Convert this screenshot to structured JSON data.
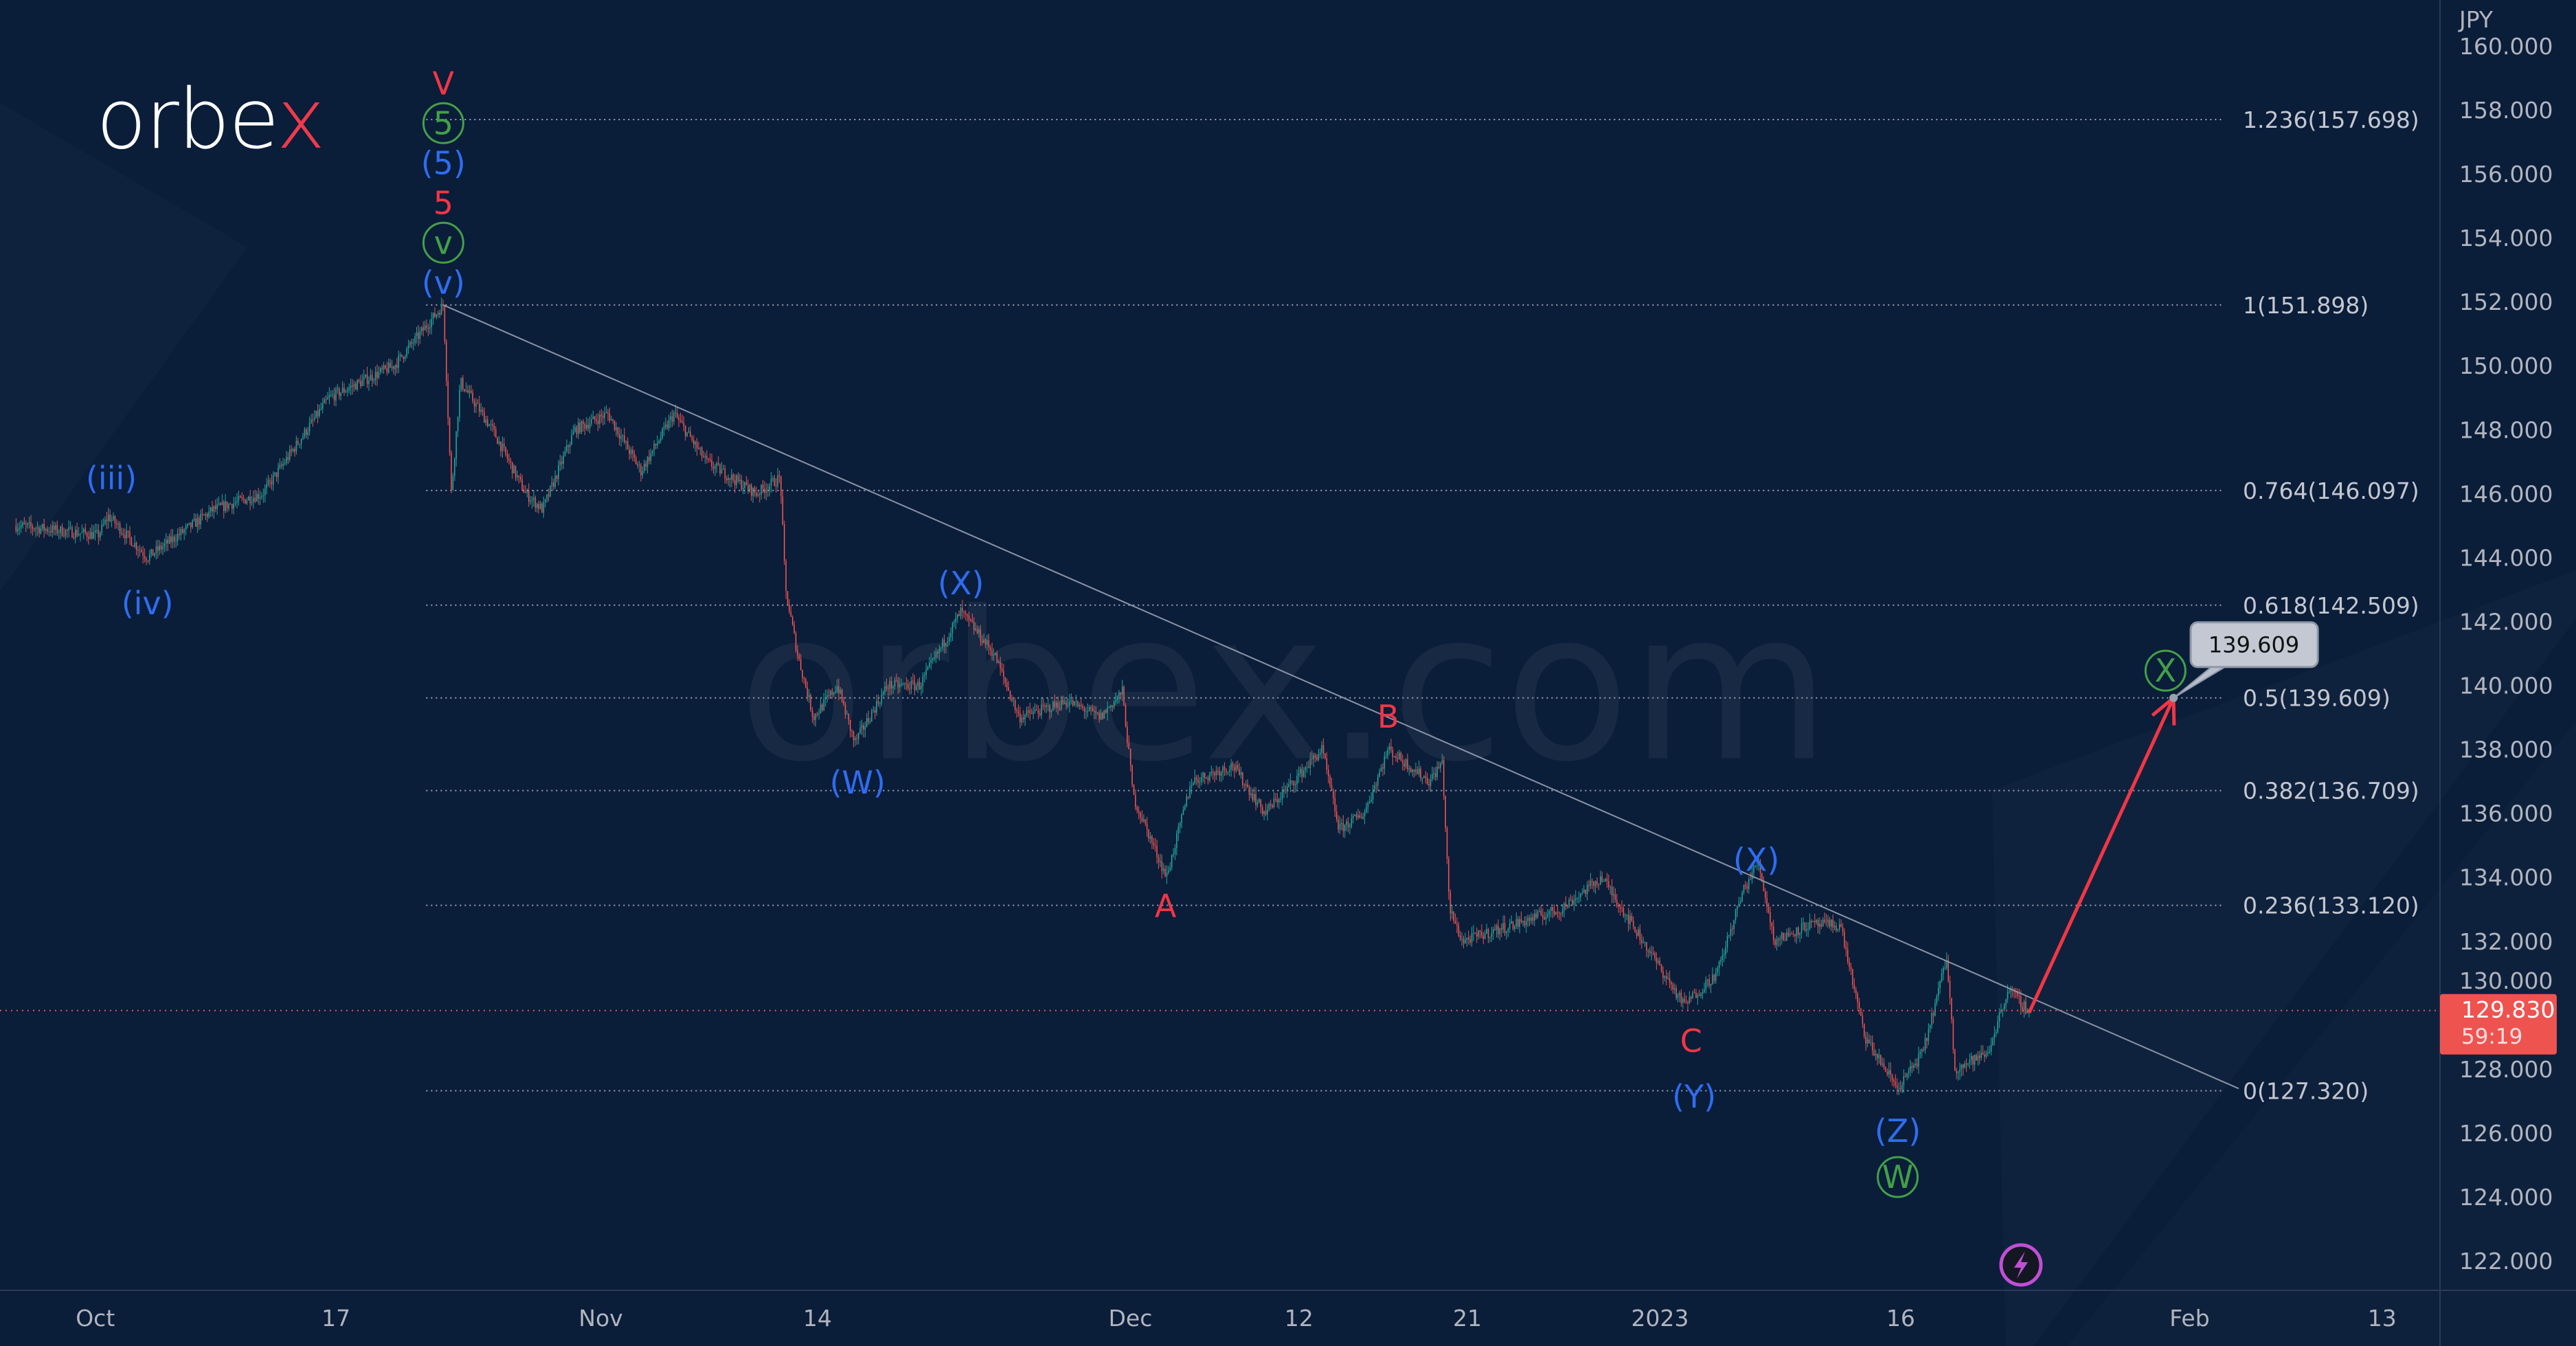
{
  "brand": {
    "logo_text": "orbex",
    "watermark": "orbex.com"
  },
  "chart_data": {
    "type": "candlestick",
    "currency_label": "JPY",
    "ylim": [
      121,
      160.5
    ],
    "y_ticks": [
      "160.000",
      "158.000",
      "156.000",
      "154.000",
      "152.000",
      "150.000",
      "148.000",
      "146.000",
      "144.000",
      "142.000",
      "140.000",
      "138.000",
      "136.000",
      "134.000",
      "132.000",
      "130.000",
      "128.000",
      "126.000",
      "124.000",
      "122.000"
    ],
    "x_ticks": [
      {
        "label": "Oct",
        "date": "2022-10-03"
      },
      {
        "label": "17",
        "date": "2022-10-17"
      },
      {
        "label": "Nov",
        "date": "2022-11-01"
      },
      {
        "label": "14",
        "date": "2022-11-14"
      },
      {
        "label": "Dec",
        "date": "2022-12-01"
      },
      {
        "label": "12",
        "date": "2022-12-12"
      },
      {
        "label": "21",
        "date": "2022-12-21"
      },
      {
        "label": "2023",
        "date": "2023-01-02"
      },
      {
        "label": "16",
        "date": "2023-01-16"
      },
      {
        "label": "Feb",
        "date": "2023-02-01"
      },
      {
        "label": "13",
        "date": "2023-02-13"
      }
    ],
    "price_path": [
      [
        "2022-09-27T17",
        145.0
      ],
      [
        "2022-10-03T03",
        144.7
      ],
      [
        "2022-10-03T13",
        145.3
      ],
      [
        "2022-10-05T04",
        144.0
      ],
      [
        "2022-10-07T22",
        145.5
      ],
      [
        "2022-10-11T23",
        146.0
      ],
      [
        "2022-10-14T17",
        149.0
      ],
      [
        "2022-10-19T10",
        150.0
      ],
      [
        "2022-10-21T11",
        151.9
      ],
      [
        "2022-10-21T19",
        146.0
      ],
      [
        "2022-10-24T04",
        149.5
      ],
      [
        "2022-10-25T12",
        148.0
      ],
      [
        "2022-10-26T21",
        146.0
      ],
      [
        "2022-10-27T14",
        145.5
      ],
      [
        "2022-10-28T22",
        148.0
      ],
      [
        "2022-11-01T07",
        148.5
      ],
      [
        "2022-11-02T16",
        146.7
      ],
      [
        "2022-11-04T01",
        148.5
      ],
      [
        "2022-11-07T09",
        147.0
      ],
      [
        "2022-11-09T11",
        146.0
      ],
      [
        "2022-11-10T11",
        146.5
      ],
      [
        "2022-11-10T16",
        143.0
      ],
      [
        "2022-11-11T04",
        141.0
      ],
      [
        "2022-11-11T20",
        139.0
      ],
      [
        "2022-11-14T20",
        140.0
      ],
      [
        "2022-11-15T13",
        138.2
      ],
      [
        "2022-11-16T22",
        140.0
      ],
      [
        "2022-11-18T06",
        140.0
      ],
      [
        "2022-11-21T23",
        142.3
      ],
      [
        "2022-11-23T08",
        141.0
      ],
      [
        "2022-11-24T09",
        139.0
      ],
      [
        "2022-11-28T10",
        139.5
      ],
      [
        "2022-11-29T18",
        139.0
      ],
      [
        "2022-11-30T16",
        139.8
      ],
      [
        "2022-12-01T03",
        136.5
      ],
      [
        "2022-12-02T12",
        134.0
      ],
      [
        "2022-12-05T13",
        137.0
      ],
      [
        "2022-12-07T06",
        137.5
      ],
      [
        "2022-12-08T14",
        136.0
      ],
      [
        "2022-12-12T23",
        138.0
      ],
      [
        "2022-12-13T16",
        135.5
      ],
      [
        "2022-12-14T17",
        136.0
      ],
      [
        "2022-12-15T17",
        138.0
      ],
      [
        "2022-12-19T10",
        137.0
      ],
      [
        "2022-12-19T23",
        137.6
      ],
      [
        "2022-12-20T06",
        133.0
      ],
      [
        "2022-12-20T19",
        132.0
      ],
      [
        "2022-12-22T20",
        132.5
      ],
      [
        "2022-12-26T21",
        133.0
      ],
      [
        "2022-12-28T14",
        134.0
      ],
      [
        "2022-12-30T07",
        132.0
      ],
      [
        "2023-01-03T00",
        130.0
      ],
      [
        "2023-01-04T09",
        131.0
      ],
      [
        "2023-01-05T10",
        133.5
      ],
      [
        "2023-01-06T02",
        134.5
      ],
      [
        "2023-01-06T18",
        132.0
      ],
      [
        "2023-01-10T03",
        132.5
      ],
      [
        "2023-01-11T12",
        132.5
      ],
      [
        "2023-01-12T12",
        129.0
      ],
      [
        "2023-01-13T21",
        127.4
      ],
      [
        "2023-01-16T22",
        128.5
      ],
      [
        "2023-01-17T22",
        131.5
      ],
      [
        "2023-01-18T06",
        128.0
      ],
      [
        "2023-01-19T15",
        128.5
      ],
      [
        "2023-01-20T11",
        130.5
      ],
      [
        "2023-01-23T08",
        129.8
      ]
    ],
    "current_price": {
      "value": "129.830",
      "countdown": "59:19",
      "price": 129.83,
      "color": "#ef5350"
    },
    "fib_levels": [
      {
        "label": "1.236(157.698)",
        "price": 157.698
      },
      {
        "label": "1(151.898)",
        "price": 151.898
      },
      {
        "label": "0.764(146.097)",
        "price": 146.097
      },
      {
        "label": "0.618(142.509)",
        "price": 142.509
      },
      {
        "label": "0.5(139.609)",
        "price": 139.609
      },
      {
        "label": "0.382(136.709)",
        "price": 136.709
      },
      {
        "label": "0.236(133.120)",
        "price": 133.12
      },
      {
        "label": "0(127.320)",
        "price": 127.32
      }
    ],
    "fib_range": {
      "start": "2022-10-21T11",
      "end": "2023-02-03T00"
    },
    "trendline": {
      "start": [
        "2022-10-21T11",
        151.898
      ],
      "end": [
        "2023-02-03T01",
        127.39
      ],
      "color": "#8a93a6"
    },
    "forecast_arrow": {
      "start": [
        "2023-01-23T08",
        129.76
      ],
      "end": [
        "2023-01-31T08",
        139.609
      ],
      "color": "#f23645"
    },
    "target_callout": {
      "label": "139.609",
      "at": [
        "2023-01-31T08",
        139.609
      ]
    },
    "wave_labels": [
      {
        "text": "(iii)",
        "color": "#2f6cf0",
        "circled": false,
        "at": [
          "2022-10-03T16",
          146.48
        ]
      },
      {
        "text": "(iv)",
        "color": "#2f6cf0",
        "circled": false,
        "at": [
          "2022-10-05T04",
          142.57
        ]
      },
      {
        "text": "V",
        "color": "#f23645",
        "circled": false,
        "at": [
          "2022-10-21T11",
          157.33
        ]
      },
      {
        "text": "5",
        "color": "#43a047",
        "circled": true,
        "at": [
          "2022-10-21T11",
          156.05
        ]
      },
      {
        "text": "(5)",
        "color": "#2f6cf0",
        "circled": false,
        "at": [
          "2022-10-21T11",
          154.91
        ]
      },
      {
        "text": "5",
        "color": "#f23645",
        "circled": false,
        "at": [
          "2022-10-21T11",
          154.09
        ]
      },
      {
        "text": "v",
        "color": "#43a047",
        "circled": true,
        "at": [
          "2022-10-21T11",
          153.32
        ]
      },
      {
        "text": "(v)",
        "color": "#2f6cf0",
        "circled": false,
        "at": [
          "2022-10-21T11",
          152.6
        ]
      },
      {
        "text": "(W)",
        "color": "#2f6cf0",
        "circled": false,
        "at": [
          "2022-11-15T16",
          136.96
        ]
      },
      {
        "text": "(X)",
        "color": "#2f6cf0",
        "circled": false,
        "at": [
          "2022-11-21T23",
          143.19
        ]
      },
      {
        "text": "A",
        "color": "#f23645",
        "circled": false,
        "at": [
          "2022-12-02T11",
          133.1
        ]
      },
      {
        "text": "B",
        "color": "#f23645",
        "circled": false,
        "at": [
          "2022-12-15T17",
          139.02
        ]
      },
      {
        "text": "C",
        "color": "#f23645",
        "circled": false,
        "at": [
          "2023-01-03T07",
          128.88
        ]
      },
      {
        "text": "(Y)",
        "color": "#2f6cf0",
        "circled": false,
        "at": [
          "2023-01-03T10",
          127.14
        ]
      },
      {
        "text": "(X)",
        "color": "#2f6cf0",
        "circled": false,
        "at": [
          "2023-01-06T00",
          134.54
        ]
      },
      {
        "text": "(Z)",
        "color": "#2f6cf0",
        "circled": false,
        "at": [
          "2023-01-13T21",
          126.06
        ]
      },
      {
        "text": "W",
        "color": "#43a047",
        "circled": true,
        "at": [
          "2023-01-13T21",
          124.62
        ]
      },
      {
        "text": "X",
        "color": "#43a047",
        "circled": true,
        "at": [
          "2023-01-31T00",
          140.46
        ]
      }
    ],
    "colors": {
      "background": "#0a1d39",
      "up": "#26a69a",
      "down": "#ef5350",
      "axis_text": "#b2b5be",
      "events_icon": "#c04fd6"
    },
    "events_icon": "lightning-icon",
    "grid": false
  }
}
